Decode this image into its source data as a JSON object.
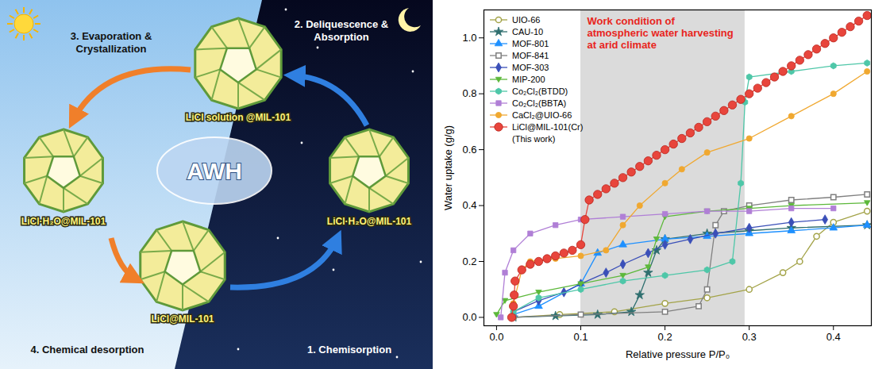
{
  "diagram": {
    "center": "AWH",
    "nodes": [
      {
        "label": "LiCl solution @MIL-101"
      },
      {
        "label": "LiCl·H₂O@MIL-101"
      },
      {
        "label": "LiCl@MIL-101"
      },
      {
        "label": "LiCl·H₂O@MIL-101"
      }
    ],
    "steps": [
      "1. Chemisorption",
      "2. Deliquescence & Absorption",
      "3. Evaporation & Crystallization",
      "4. Chemical desorption"
    ]
  },
  "chart_data": {
    "type": "line",
    "x_label": "Relative pressure P/P₀",
    "y_label": "Water uptake (g/g)",
    "xlim": [
      -0.015,
      0.445
    ],
    "ylim": [
      -0.03,
      1.1
    ],
    "xticks": [
      {
        "value": 0,
        "label": "0.0"
      },
      0.1,
      0.2,
      0.3,
      0.4
    ],
    "yticks": [
      {
        "value": 0,
        "label": "0.0"
      },
      0.2,
      0.4,
      0.6,
      0.8,
      {
        "value": 1,
        "label": "1.0"
      }
    ],
    "grid": false,
    "legend": "upper left",
    "highlight_x": [
      0.1,
      0.295
    ],
    "annotations": [
      {
        "text": "Work condition of atmospheric water harvesting at arid climate",
        "color": "#e8251d"
      }
    ],
    "series": [
      {
        "name": "UIO-66",
        "color": "#a3a348",
        "marker": "open-circle",
        "x": [
          0.02,
          0.075,
          0.14,
          0.2,
          0.25,
          0.3,
          0.34,
          0.36,
          0.38,
          0.4,
          0.44
        ],
        "values": [
          0.0,
          0.01,
          0.02,
          0.05,
          0.07,
          0.1,
          0.16,
          0.2,
          0.29,
          0.34,
          0.38
        ]
      },
      {
        "name": "CAU-10",
        "color": "#2f6f6f",
        "marker": "star",
        "x": [
          0.02,
          0.07,
          0.12,
          0.16,
          0.17,
          0.18,
          0.19,
          0.2,
          0.25,
          0.3,
          0.35,
          0.44
        ],
        "values": [
          0.0,
          0.005,
          0.01,
          0.02,
          0.08,
          0.16,
          0.24,
          0.28,
          0.3,
          0.31,
          0.32,
          0.33
        ]
      },
      {
        "name": "MOF-801",
        "color": "#1e90ff",
        "marker": "triangle",
        "x": [
          0.02,
          0.05,
          0.1,
          0.12,
          0.15,
          0.2,
          0.25,
          0.3,
          0.35,
          0.4,
          0.44
        ],
        "values": [
          0.01,
          0.04,
          0.12,
          0.23,
          0.26,
          0.28,
          0.29,
          0.3,
          0.31,
          0.32,
          0.33
        ]
      },
      {
        "name": "MOF-841",
        "color": "#808080",
        "marker": "open-square",
        "x": [
          0.02,
          0.1,
          0.2,
          0.24,
          0.25,
          0.26,
          0.27,
          0.3,
          0.35,
          0.4,
          0.44
        ],
        "values": [
          0.0,
          0.01,
          0.02,
          0.04,
          0.1,
          0.33,
          0.38,
          0.4,
          0.42,
          0.43,
          0.44
        ]
      },
      {
        "name": "MOF-303",
        "color": "#3a4fb8",
        "marker": "diamond",
        "x": [
          0.02,
          0.05,
          0.08,
          0.1,
          0.13,
          0.15,
          0.18,
          0.2,
          0.23,
          0.26,
          0.3,
          0.35,
          0.39
        ],
        "values": [
          0.02,
          0.06,
          0.09,
          0.12,
          0.16,
          0.19,
          0.23,
          0.26,
          0.28,
          0.3,
          0.32,
          0.34,
          0.35
        ]
      },
      {
        "name": "MIP-200",
        "color": "#5cb83a",
        "marker": "triangle-down",
        "x": [
          0.0,
          0.01,
          0.05,
          0.1,
          0.15,
          0.18,
          0.19,
          0.2,
          0.25,
          0.3,
          0.35,
          0.44
        ],
        "values": [
          0.01,
          0.06,
          0.09,
          0.12,
          0.15,
          0.18,
          0.28,
          0.36,
          0.38,
          0.39,
          0.4,
          0.41
        ]
      },
      {
        "name": "Co₂Cl₂(BTDD)",
        "color": "#4ec7a8",
        "marker": "hexagon",
        "x": [
          0.02,
          0.05,
          0.1,
          0.15,
          0.2,
          0.25,
          0.28,
          0.29,
          0.295,
          0.3,
          0.35,
          0.4,
          0.44
        ],
        "values": [
          0.02,
          0.07,
          0.1,
          0.13,
          0.15,
          0.17,
          0.2,
          0.48,
          0.77,
          0.86,
          0.88,
          0.9,
          0.91
        ]
      },
      {
        "name": "Co₂Cl₂(BBTA)",
        "color": "#b07fd6",
        "marker": "square",
        "x": [
          0.005,
          0.01,
          0.02,
          0.04,
          0.07,
          0.1,
          0.15,
          0.2,
          0.25,
          0.3,
          0.35,
          0.4
        ],
        "values": [
          0.0,
          0.16,
          0.24,
          0.3,
          0.33,
          0.35,
          0.36,
          0.37,
          0.38,
          0.38,
          0.39,
          0.39
        ]
      },
      {
        "name": "CaCl₂@UIO-66",
        "color": "#f0a830",
        "marker": "circle",
        "x": [
          0.02,
          0.03,
          0.04,
          0.07,
          0.1,
          0.13,
          0.15,
          0.17,
          0.2,
          0.22,
          0.25,
          0.3,
          0.35,
          0.4,
          0.44
        ],
        "values": [
          0.05,
          0.17,
          0.2,
          0.21,
          0.22,
          0.24,
          0.33,
          0.4,
          0.48,
          0.53,
          0.59,
          0.64,
          0.72,
          0.8,
          0.88
        ]
      },
      {
        "name": "LiCl@MIL-101(Cr) (This work)",
        "color": "#e8453c",
        "marker": "circle",
        "x": [
          0.018,
          0.02,
          0.021,
          0.022,
          0.03,
          0.04,
          0.05,
          0.06,
          0.07,
          0.08,
          0.09,
          0.1,
          0.105,
          0.11,
          0.12,
          0.13,
          0.14,
          0.15,
          0.16,
          0.17,
          0.18,
          0.19,
          0.2,
          0.21,
          0.22,
          0.23,
          0.24,
          0.25,
          0.26,
          0.27,
          0.28,
          0.29,
          0.3,
          0.31,
          0.32,
          0.33,
          0.34,
          0.35,
          0.36,
          0.37,
          0.38,
          0.39,
          0.4,
          0.41,
          0.42,
          0.43,
          0.44
        ],
        "values": [
          0.0,
          0.04,
          0.08,
          0.13,
          0.17,
          0.19,
          0.2,
          0.21,
          0.22,
          0.23,
          0.24,
          0.26,
          0.35,
          0.42,
          0.44,
          0.46,
          0.48,
          0.5,
          0.52,
          0.54,
          0.56,
          0.58,
          0.6,
          0.62,
          0.64,
          0.66,
          0.68,
          0.7,
          0.72,
          0.74,
          0.76,
          0.78,
          0.8,
          0.82,
          0.84,
          0.86,
          0.88,
          0.9,
          0.92,
          0.94,
          0.96,
          0.98,
          1.0,
          1.02,
          1.04,
          1.06,
          1.08
        ]
      }
    ]
  }
}
